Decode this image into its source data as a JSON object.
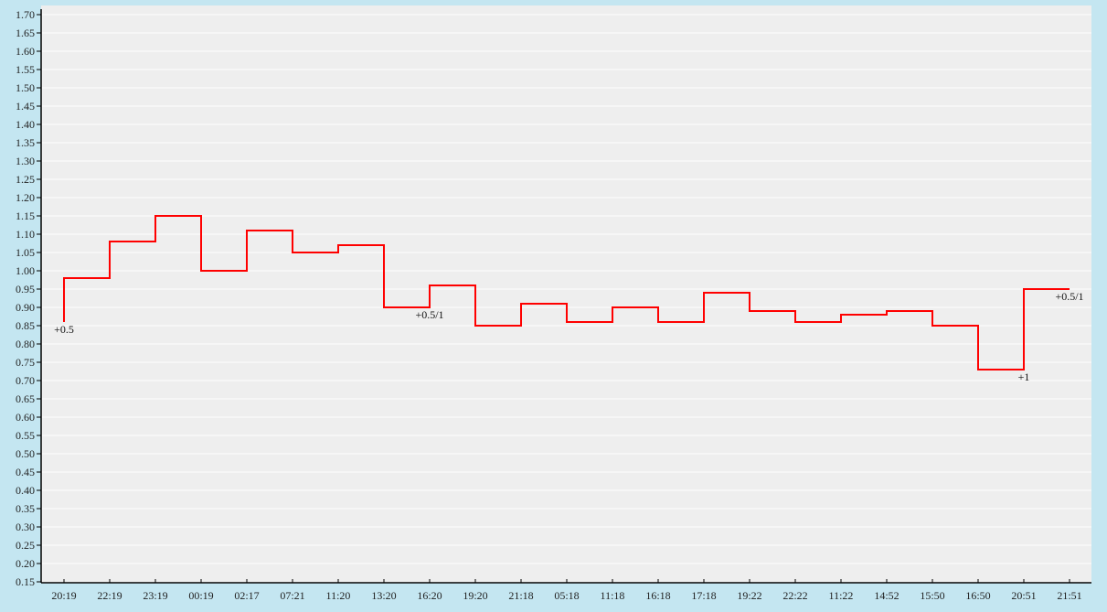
{
  "chart_data": {
    "type": "line",
    "step": "after",
    "categories": [
      "20:19",
      "22:19",
      "23:19",
      "00:19",
      "02:17",
      "07:21",
      "11:20",
      "13:20",
      "16:20",
      "19:20",
      "21:18",
      "05:18",
      "11:18",
      "16:18",
      "17:18",
      "19:22",
      "22:22",
      "11:22",
      "14:52",
      "15:50",
      "16:50",
      "20:51",
      "21:51"
    ],
    "opening_value": 0.86,
    "values": [
      0.98,
      1.08,
      1.15,
      1.0,
      1.11,
      1.05,
      1.07,
      0.9,
      0.96,
      0.85,
      0.91,
      0.86,
      0.9,
      0.86,
      0.94,
      0.89,
      0.86,
      0.88,
      0.89,
      0.85,
      0.73,
      0.95,
      0.95
    ],
    "annotations": [
      {
        "x": "20:19",
        "text": "+0.5"
      },
      {
        "x": "16:20",
        "text": "+0.5/1"
      },
      {
        "x": "20:51",
        "text": "+1"
      },
      {
        "x": "21:51",
        "text": "+0.5/1"
      }
    ],
    "ylim": [
      0.15,
      1.7
    ],
    "ytick_step": 0.05,
    "grid": true,
    "colors": {
      "line": "#ff0000",
      "plot_bg": "#eeeeee",
      "grid": "#ffffff",
      "page_bg": "#c4e6f1"
    }
  }
}
